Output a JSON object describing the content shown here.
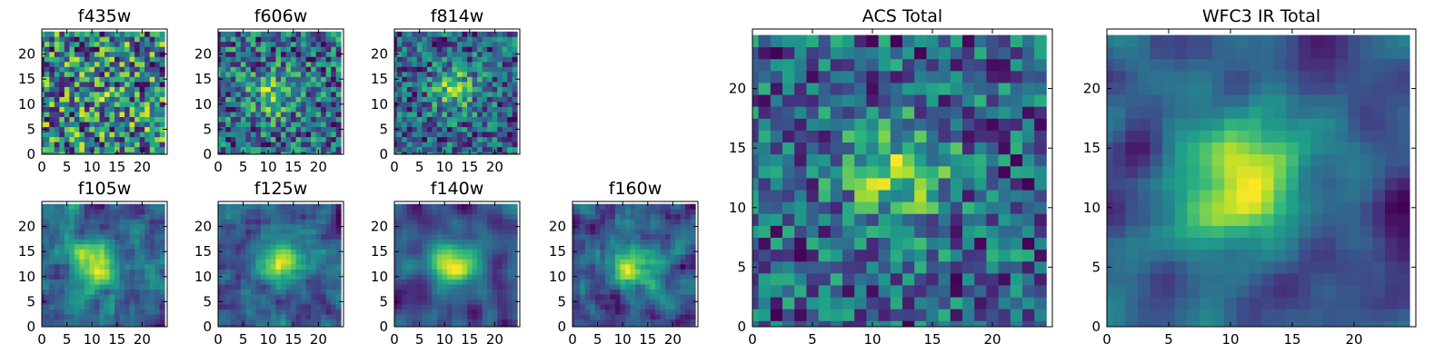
{
  "chart_data": [
    {
      "type": "heatmap",
      "title": "f435w",
      "xlim": [
        0,
        25
      ],
      "ylim": [
        0,
        25
      ],
      "xticks": [
        "0",
        "5",
        "10",
        "15",
        "20"
      ],
      "yticks": [
        "0",
        "5",
        "10",
        "15",
        "20"
      ],
      "grid_size": 25,
      "colormap": "viridis",
      "source_peak": [
        12,
        12
      ],
      "source_strength": 0.08,
      "noise": 0.95,
      "smooth": 0,
      "seed": 11
    },
    {
      "type": "heatmap",
      "title": "f606w",
      "xlim": [
        0,
        25
      ],
      "ylim": [
        0,
        25
      ],
      "xticks": [
        "0",
        "5",
        "10",
        "15",
        "20"
      ],
      "yticks": [
        "0",
        "5",
        "10",
        "15",
        "20"
      ],
      "grid_size": 25,
      "colormap": "viridis",
      "source_peak": [
        11,
        12
      ],
      "source_strength": 0.35,
      "noise": 0.75,
      "smooth": 0,
      "seed": 23
    },
    {
      "type": "heatmap",
      "title": "f814w",
      "xlim": [
        0,
        25
      ],
      "ylim": [
        0,
        25
      ],
      "xticks": [
        "0",
        "5",
        "10",
        "15",
        "20"
      ],
      "yticks": [
        "0",
        "5",
        "10",
        "15",
        "20"
      ],
      "grid_size": 25,
      "colormap": "viridis",
      "source_peak": [
        12,
        13
      ],
      "source_strength": 0.45,
      "noise": 0.7,
      "smooth": 0,
      "seed": 37
    },
    {
      "type": "heatmap",
      "title": "f105w",
      "xlim": [
        0,
        25
      ],
      "ylim": [
        0,
        25
      ],
      "xticks": [
        "0",
        "5",
        "10",
        "15",
        "20"
      ],
      "yticks": [
        "0",
        "5",
        "10",
        "15",
        "20"
      ],
      "grid_size": 25,
      "colormap": "viridis",
      "source_peak": [
        11,
        12
      ],
      "source_strength": 0.55,
      "noise": 0.55,
      "smooth": 1,
      "seed": 41
    },
    {
      "type": "heatmap",
      "title": "f125w",
      "xlim": [
        0,
        25
      ],
      "ylim": [
        0,
        25
      ],
      "xticks": [
        "0",
        "5",
        "10",
        "15",
        "20"
      ],
      "yticks": [
        "0",
        "5",
        "10",
        "15",
        "20"
      ],
      "grid_size": 25,
      "colormap": "viridis",
      "source_peak": [
        13,
        13
      ],
      "source_strength": 0.55,
      "noise": 0.55,
      "smooth": 1,
      "seed": 53
    },
    {
      "type": "heatmap",
      "title": "f140w",
      "xlim": [
        0,
        25
      ],
      "ylim": [
        0,
        25
      ],
      "xticks": [
        "0",
        "5",
        "10",
        "15",
        "20"
      ],
      "yticks": [
        "0",
        "5",
        "10",
        "15",
        "20"
      ],
      "grid_size": 25,
      "colormap": "viridis",
      "source_peak": [
        12,
        13
      ],
      "source_strength": 0.6,
      "noise": 0.45,
      "smooth": 2,
      "seed": 67
    },
    {
      "type": "heatmap",
      "title": "f160w",
      "xlim": [
        0,
        25
      ],
      "ylim": [
        0,
        25
      ],
      "xticks": [
        "0",
        "5",
        "10",
        "15",
        "20"
      ],
      "yticks": [
        "0",
        "5",
        "10",
        "15",
        "20"
      ],
      "grid_size": 25,
      "colormap": "viridis",
      "source_peak": [
        12,
        12
      ],
      "source_strength": 0.6,
      "noise": 0.5,
      "smooth": 1,
      "seed": 79
    },
    {
      "type": "heatmap",
      "title": "ACS Total",
      "xlim": [
        0,
        25
      ],
      "ylim": [
        0,
        25
      ],
      "xticks": [
        "0",
        "5",
        "10",
        "15",
        "20"
      ],
      "yticks": [
        "0",
        "5",
        "10",
        "15",
        "20"
      ],
      "grid_size": 25,
      "colormap": "viridis",
      "source_peak": [
        12,
        13
      ],
      "source_strength": 0.45,
      "noise": 0.65,
      "smooth": 0,
      "seed": 97
    },
    {
      "type": "heatmap",
      "title": "WFC3 IR Total",
      "xlim": [
        0,
        25
      ],
      "ylim": [
        0,
        25
      ],
      "xticks": [
        "0",
        "5",
        "10",
        "15",
        "20"
      ],
      "yticks": [
        "0",
        "5",
        "10",
        "15",
        "20"
      ],
      "grid_size": 25,
      "colormap": "viridis",
      "source_peak": [
        11,
        12
      ],
      "source_strength": 0.65,
      "noise": 0.4,
      "smooth": 2,
      "seed": 113
    }
  ]
}
